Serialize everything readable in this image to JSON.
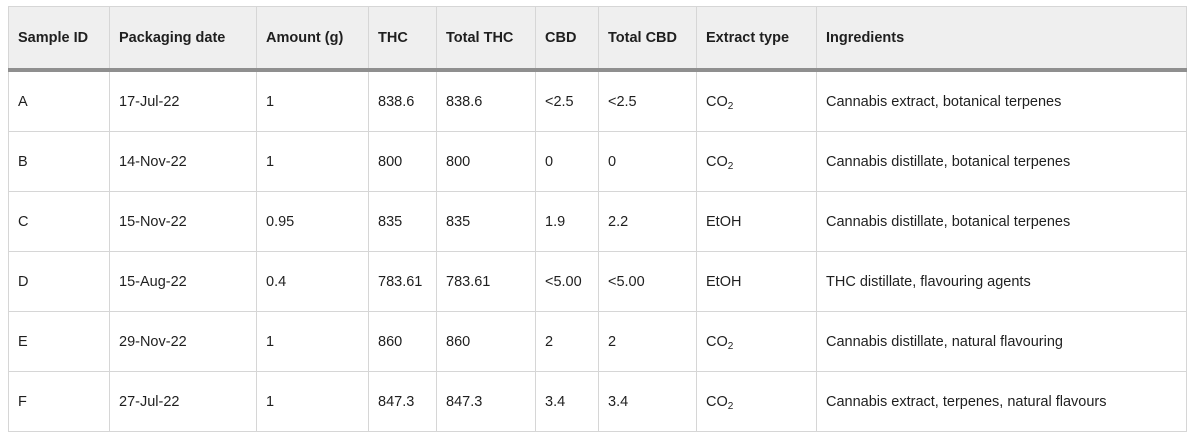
{
  "headers": [
    "Sample ID",
    "Packaging date",
    "Amount (g)",
    "THC",
    "Total THC",
    "CBD",
    "Total CBD",
    "Extract type",
    "Ingredients"
  ],
  "rows": [
    {
      "id": "A",
      "date": "17-Jul-22",
      "amount": "1",
      "thc": "838.6",
      "total_thc": "838.6",
      "cbd": "<2.5",
      "total_cbd": "<2.5",
      "extract_base": "CO",
      "extract_sub": "2",
      "ingredients": "Cannabis extract, botanical terpenes"
    },
    {
      "id": "B",
      "date": "14-Nov-22",
      "amount": "1",
      "thc": "800",
      "total_thc": "800",
      "cbd": "0",
      "total_cbd": "0",
      "extract_base": "CO",
      "extract_sub": "2",
      "ingredients": "Cannabis distillate, botanical terpenes"
    },
    {
      "id": "C",
      "date": "15-Nov-22",
      "amount": "0.95",
      "thc": "835",
      "total_thc": "835",
      "cbd": "1.9",
      "total_cbd": "2.2",
      "extract_base": "EtOH",
      "extract_sub": "",
      "ingredients": "Cannabis distillate, botanical terpenes"
    },
    {
      "id": "D",
      "date": "15-Aug-22",
      "amount": "0.4",
      "thc": "783.61",
      "total_thc": "783.61",
      "cbd": "<5.00",
      "total_cbd": "<5.00",
      "extract_base": "EtOH",
      "extract_sub": "",
      "ingredients": "THC distillate, flavouring agents"
    },
    {
      "id": "E",
      "date": "29-Nov-22",
      "amount": "1",
      "thc": "860",
      "total_thc": "860",
      "cbd": "2",
      "total_cbd": "2",
      "extract_base": "CO",
      "extract_sub": "2",
      "ingredients": "Cannabis distillate, natural flavouring"
    },
    {
      "id": "F",
      "date": "27-Jul-22",
      "amount": "1",
      "thc": "847.3",
      "total_thc": "847.3",
      "cbd": "3.4",
      "total_cbd": "3.4",
      "extract_base": "CO",
      "extract_sub": "2",
      "ingredients": "Cannabis extract, terpenes, natural flavours"
    }
  ]
}
